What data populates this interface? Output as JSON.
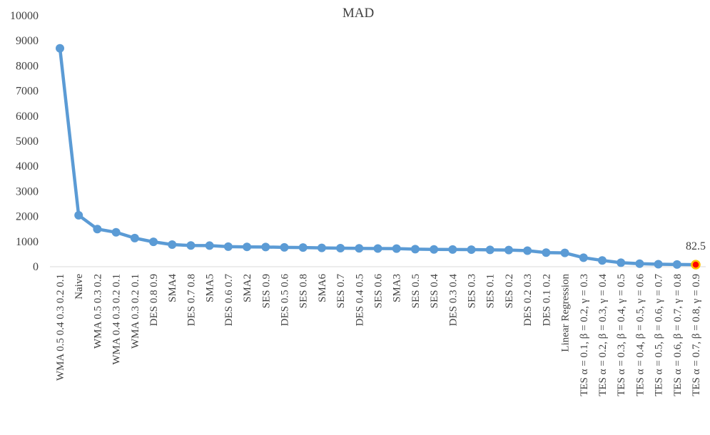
{
  "chart_data": {
    "type": "line",
    "title": "MAD",
    "xlabel": "",
    "ylabel": "",
    "ylim": [
      0,
      10000
    ],
    "yticks": [
      0,
      1000,
      2000,
      3000,
      4000,
      5000,
      6000,
      7000,
      8000,
      9000,
      10000
    ],
    "grid": false,
    "legend": "none",
    "categories": [
      "WMA 0.5 0.4 0.3 0.2 0.1",
      "Naive",
      "WMA 0.5 0.3 0.2",
      "WMA 0.4 0.3 0.2 0.1",
      "WMA 0.3 0.2 0.1",
      "DES 0.8 0.9",
      "SMA4",
      "DES 0.7 0.8",
      "SMA5",
      "DES 0.6 0.7",
      "SMA2",
      "SES 0.9",
      "DES 0.5 0.6",
      "SES 0.8",
      "SMA6",
      "SES 0.7",
      "DES 0.4 0.5",
      "SES 0.6",
      "SMA3",
      "SES 0.5",
      "SES 0.4",
      "DES 0.3 0.4",
      "SES 0.3",
      "SES 0.1",
      "SES 0.2",
      "DES 0.2 0.3",
      "DES 0.1 0.2",
      "Linear Regression",
      "TES α = 0.1, β = 0.2, γ = 0.3",
      "TES α = 0.2, β = 0.3, γ = 0.4",
      "TES α = 0.3, β = 0.4, γ = 0.5",
      "TES α = 0.4, β = 0.5, γ = 0.6",
      "TES α = 0.5, β = 0.6, γ = 0.7",
      "TES α = 0.6, β = 0.7, γ = 0.8",
      "TES α = 0.7, β = 0.8, γ = 0.9"
    ],
    "series": [
      {
        "values": [
          8700,
          2050,
          1500,
          1370,
          1140,
          990,
          880,
          845,
          840,
          800,
          790,
          785,
          770,
          765,
          750,
          740,
          730,
          725,
          720,
          700,
          690,
          685,
          680,
          670,
          665,
          640,
          560,
          550,
          360,
          250,
          160,
          120,
          100,
          90,
          82.5
        ],
        "color": "#5b9bd5"
      }
    ],
    "highlight": {
      "index": 34,
      "label": "82.5",
      "fill": "#ff0000",
      "stroke": "#ffc000"
    }
  }
}
